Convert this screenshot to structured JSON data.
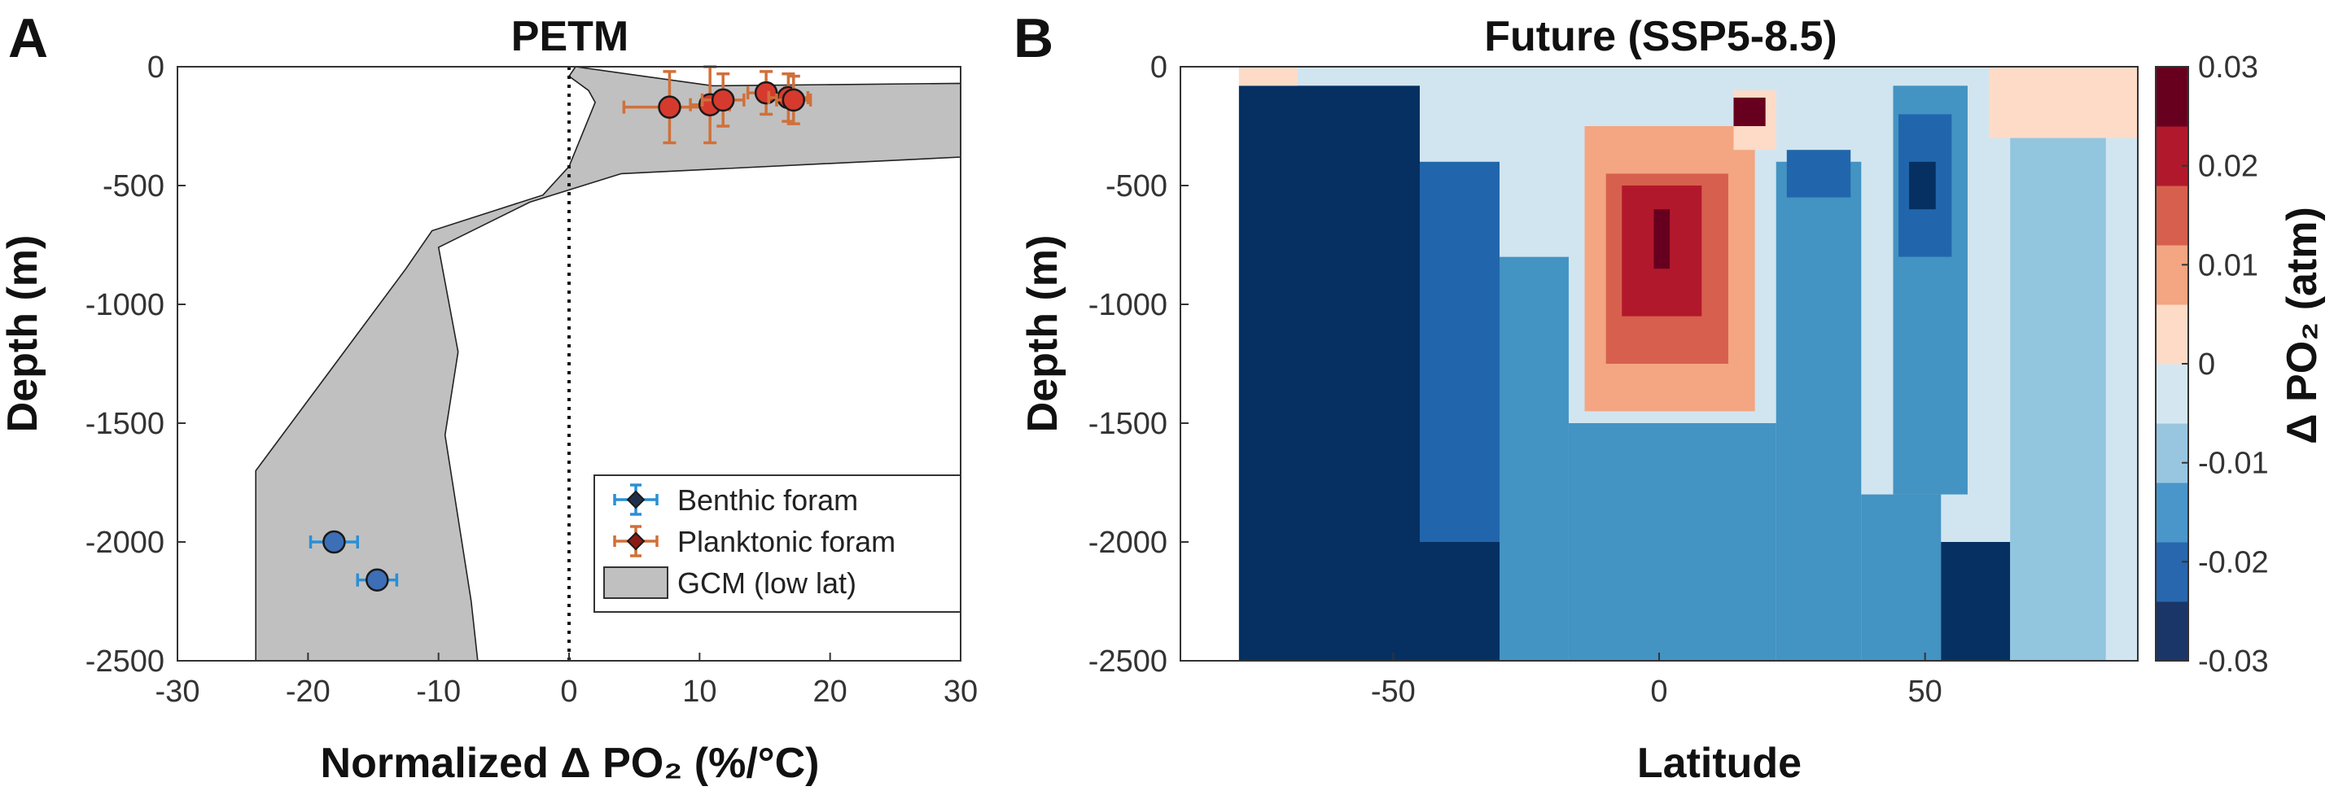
{
  "colors": {
    "benthic": "#3d6fb6",
    "benthic_err": "#2a8fd6",
    "planktonic": "#d63a2e",
    "planktonic_err": "#d0703a",
    "gcm_fill": "#c0c0c0",
    "axis": "#333333"
  },
  "chart_data": [
    {
      "panel": "A",
      "type": "scatter",
      "title": "PETM",
      "xlabel": "Normalized Δ PO₂ (%/°C)",
      "ylabel": "Depth (m)",
      "xlim": [
        -30,
        30
      ],
      "ylim": [
        -2500,
        0
      ],
      "xticks": [
        -30,
        -20,
        -10,
        0,
        10,
        20,
        30
      ],
      "yticks": [
        0,
        -500,
        -1000,
        -1500,
        -2000,
        -2500
      ],
      "xtick_labels": [
        "-30",
        "-20",
        "-10",
        "0",
        "10",
        "20",
        "30"
      ],
      "ytick_labels": [
        "0",
        "-500",
        "-1000",
        "-1500",
        "-2000",
        "-2500"
      ],
      "grid": false,
      "legend_position": "lower-right",
      "zero_line": "dotted vertical at x = 0",
      "series": [
        {
          "name": "Benthic foram",
          "points": [
            {
              "x": -18,
              "y": -2000,
              "xerr": 1.8,
              "yerr": 0
            },
            {
              "x": -14.7,
              "y": -2160,
              "xerr": 1.5,
              "yerr": 0
            }
          ]
        },
        {
          "name": "Planktonic foram",
          "points": [
            {
              "x": 7.7,
              "y": -170,
              "xerr": 3.5,
              "yerr": 150
            },
            {
              "x": 10.8,
              "y": -160,
              "xerr": 1.5,
              "yerr": 160
            },
            {
              "x": 11.8,
              "y": -140,
              "xerr": 1.6,
              "yerr": 110
            },
            {
              "x": 15.1,
              "y": -110,
              "xerr": 1.4,
              "yerr": 90
            },
            {
              "x": 16.8,
              "y": -130,
              "xerr": 1.5,
              "yerr": 100
            },
            {
              "x": 17.2,
              "y": -140,
              "xerr": 1.3,
              "yerr": 100
            }
          ]
        },
        {
          "name": "GCM (low lat)",
          "type": "area",
          "lower_bound": [
            {
              "x": -24,
              "y": -2500
            },
            {
              "x": -24,
              "y": -1700
            },
            {
              "x": -12.5,
              "y": -850
            },
            {
              "x": -10.5,
              "y": -690
            },
            {
              "x": -2,
              "y": -540
            },
            {
              "x": 0,
              "y": -420
            },
            {
              "x": 2,
              "y": -150
            },
            {
              "x": 1.5,
              "y": -100
            },
            {
              "x": 0,
              "y": -40
            }
          ],
          "upper_bound": [
            {
              "x": 0.5,
              "y": 0
            },
            {
              "x": 11,
              "y": -80
            },
            {
              "x": 30,
              "y": -70
            },
            {
              "x": 30,
              "y": -380
            },
            {
              "x": 4,
              "y": -450
            },
            {
              "x": -3,
              "y": -570
            },
            {
              "x": -10,
              "y": -760
            },
            {
              "x": -8.5,
              "y": -1200
            },
            {
              "x": -9.5,
              "y": -1550
            },
            {
              "x": -7.5,
              "y": -2250
            },
            {
              "x": -7,
              "y": -2500
            }
          ]
        }
      ]
    },
    {
      "panel": "B",
      "type": "heatmap",
      "title": "Future (SSP5-8.5)",
      "xlabel": "Latitude",
      "ylabel": "Depth (m)",
      "colorbar_label": "Δ PO₂ (atm)",
      "xlim": [
        -90,
        90
      ],
      "ylim": [
        -2500,
        0
      ],
      "xticks": [
        -50,
        0,
        50
      ],
      "xtick_labels": [
        "-50",
        "0",
        "50"
      ],
      "yticks": [
        0,
        -500,
        -1000,
        -1500,
        -2000,
        -2500
      ],
      "ytick_labels": [
        "0",
        "-500",
        "-1000",
        "-1500",
        "-2000",
        "-2500"
      ],
      "colorbar_ticks": [
        0.03,
        0.02,
        0.01,
        0,
        -0.01,
        -0.02,
        -0.03
      ],
      "colorbar_tick_labels": [
        "0.03",
        "0.02",
        "0.01",
        "0",
        "-0.01",
        "-0.02",
        "-0.03"
      ],
      "colorbar_range": [
        -0.03,
        0.03
      ],
      "colorbar_levels": [
        {
          "from": 0.025,
          "to": 0.03,
          "color": "#67001f"
        },
        {
          "from": 0.02,
          "to": 0.025,
          "color": "#b2182b"
        },
        {
          "from": 0.015,
          "to": 0.02,
          "color": "#d6604d"
        },
        {
          "from": 0.01,
          "to": 0.015,
          "color": "#f4a582"
        },
        {
          "from": 0.005,
          "to": 0.01,
          "color": "#fddbc7"
        },
        {
          "from": 0,
          "to": 0.005,
          "color": "#f7f7f7"
        },
        {
          "from": -0.005,
          "to": 0,
          "color": "#d1e5f0"
        },
        {
          "from": -0.01,
          "to": -0.005,
          "color": "#92c5de"
        },
        {
          "from": -0.015,
          "to": -0.01,
          "color": "#4393c3"
        },
        {
          "from": -0.02,
          "to": -0.015,
          "color": "#2166ac"
        },
        {
          "from": -0.03,
          "to": -0.02,
          "color": "#053061"
        }
      ],
      "colorbar_display_levels": [
        "#1a3668",
        "#2867ae",
        "#4a96cb",
        "#98c6e0",
        "#d4e7f1",
        "#fddbc7",
        "#f4a582",
        "#d6604d",
        "#b2182b",
        "#67001f"
      ],
      "regions": [
        {
          "lat": [
            -90,
            -79
          ],
          "depth": [
            0,
            -2500
          ],
          "value": null
        },
        {
          "lat": [
            -79,
            -45
          ],
          "depth": [
            -80,
            -2500
          ],
          "value": -0.025
        },
        {
          "lat": [
            -45,
            -30
          ],
          "depth": [
            -2000,
            -2500
          ],
          "value": -0.025
        },
        {
          "lat": [
            -45,
            -30
          ],
          "depth": [
            -400,
            -2000
          ],
          "value": -0.018
        },
        {
          "lat": [
            -30,
            -17
          ],
          "depth": [
            -800,
            -2500
          ],
          "value": -0.013
        },
        {
          "lat": [
            -30,
            -17
          ],
          "depth": [
            -80,
            -800
          ],
          "value": -0.004
        },
        {
          "lat": [
            -17,
            22
          ],
          "depth": [
            -1500,
            -2500
          ],
          "value": -0.013
        },
        {
          "lat": [
            -14,
            18
          ],
          "depth": [
            -250,
            -1450
          ],
          "value": 0.013
        },
        {
          "lat": [
            -10,
            13
          ],
          "depth": [
            -450,
            -1250
          ],
          "value": 0.018
        },
        {
          "lat": [
            -7,
            8
          ],
          "depth": [
            -500,
            -1050
          ],
          "value": 0.023
        },
        {
          "lat": [
            -1,
            2
          ],
          "depth": [
            -600,
            -850
          ],
          "value": 0.028
        },
        {
          "lat": [
            14,
            22
          ],
          "depth": [
            -100,
            -350
          ],
          "value": 0.008
        },
        {
          "lat": [
            14,
            20
          ],
          "depth": [
            -130,
            -250
          ],
          "value": 0.028
        },
        {
          "lat": [
            22,
            38
          ],
          "depth": [
            -400,
            -2500
          ],
          "value": -0.014
        },
        {
          "lat": [
            24,
            36
          ],
          "depth": [
            -350,
            -550
          ],
          "value": -0.018
        },
        {
          "lat": [
            38,
            53
          ],
          "depth": [
            -1800,
            -2500
          ],
          "value": -0.014
        },
        {
          "lat": [
            53,
            66
          ],
          "depth": [
            -2000,
            -2500
          ],
          "value": -0.025
        },
        {
          "lat": [
            44,
            58
          ],
          "depth": [
            -80,
            -1800
          ],
          "value": -0.013
        },
        {
          "lat": [
            45,
            55
          ],
          "depth": [
            -200,
            -800
          ],
          "value": -0.02
        },
        {
          "lat": [
            47,
            52
          ],
          "depth": [
            -400,
            -600
          ],
          "value": -0.025
        },
        {
          "lat": [
            66,
            84
          ],
          "depth": [
            -80,
            -2500
          ],
          "value": -0.007
        },
        {
          "lat": [
            84,
            90
          ],
          "depth": [
            -700,
            -2500
          ],
          "value": -0.003
        },
        {
          "lat": [
            -79,
            -68
          ],
          "depth": [
            0,
            -80
          ],
          "value": 0.008
        },
        {
          "lat": [
            62,
            90
          ],
          "depth": [
            0,
            -300
          ],
          "value": 0.006
        }
      ]
    }
  ]
}
